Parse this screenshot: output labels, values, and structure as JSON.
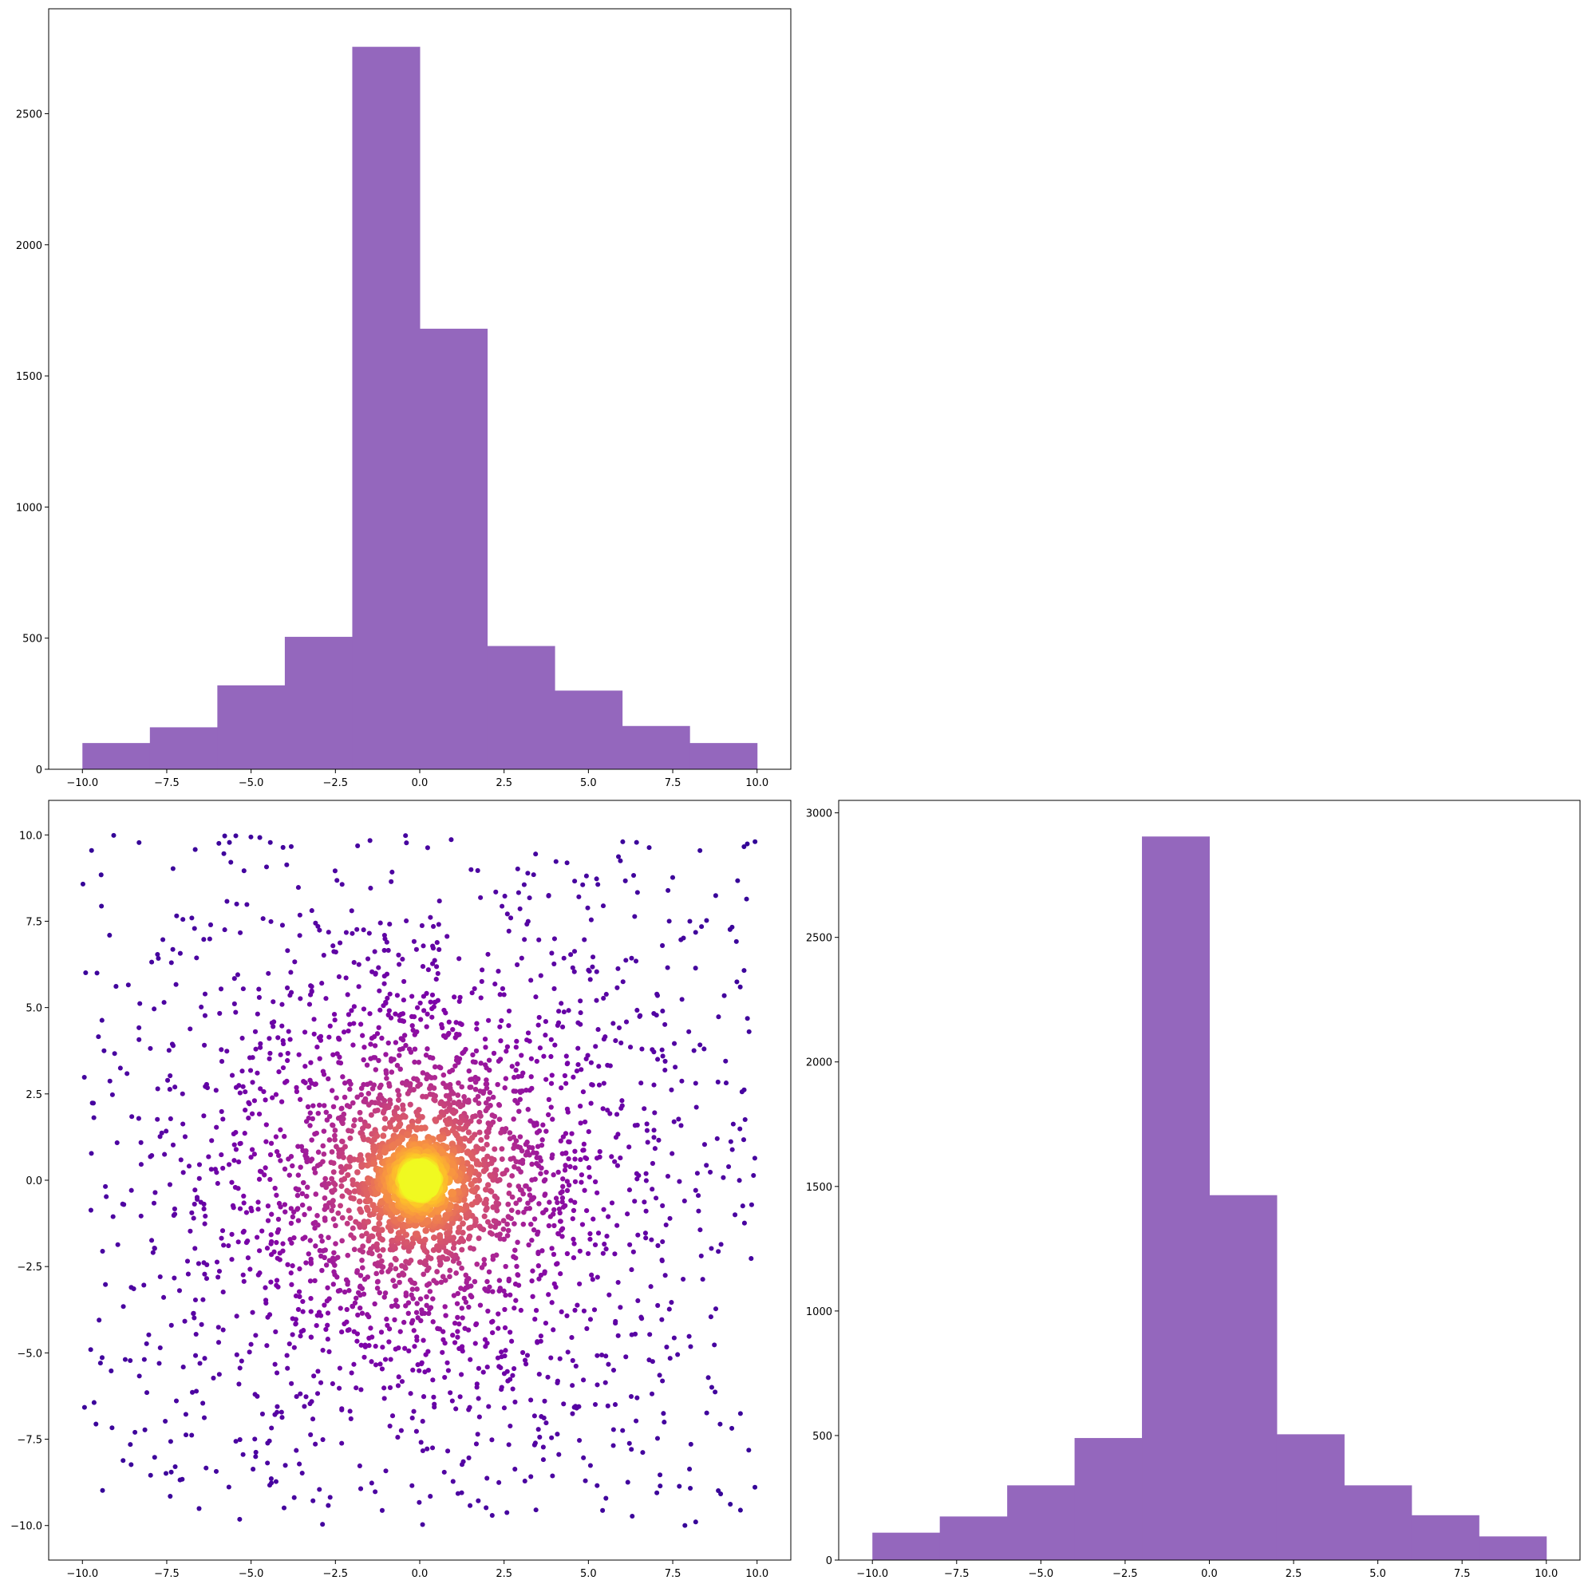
{
  "colors": {
    "hist_fill": "#9467bd",
    "scatter_colormap": "plasma"
  },
  "chart_data": [
    {
      "id": "top-left",
      "type": "bar",
      "variant": "histogram",
      "bin_edges": [
        -10,
        -8,
        -6,
        -4,
        -2,
        0,
        2,
        4,
        6,
        8,
        10
      ],
      "values": [
        100,
        160,
        320,
        505,
        2755,
        1680,
        470,
        300,
        165,
        100
      ],
      "xlim": [
        -11,
        11
      ],
      "ylim": [
        0,
        2900
      ],
      "xticks": [
        -10,
        -7.5,
        -5,
        -2.5,
        0,
        2.5,
        5,
        7.5,
        10
      ],
      "xtick_labels": [
        "−10.0",
        "−7.5",
        "−5.0",
        "−2.5",
        "0.0",
        "2.5",
        "5.0",
        "7.5",
        "10.0"
      ],
      "yticks": [
        0,
        500,
        1000,
        1500,
        2000,
        2500
      ],
      "ytick_labels": [
        "0",
        "500",
        "1000",
        "1500",
        "2000",
        "2500"
      ],
      "grid": false
    },
    {
      "id": "bottom-left",
      "type": "scatter",
      "colormap": "plasma",
      "color_encoding": "inverse distance from origin",
      "size_encoding": "inverse distance from origin",
      "x_range": [
        -10,
        10
      ],
      "y_range": [
        -10,
        10
      ],
      "point_count": 3000,
      "center_cluster": [
        0,
        0
      ],
      "xlim": [
        -11,
        11
      ],
      "ylim": [
        -11,
        11
      ],
      "xticks": [
        -10,
        -7.5,
        -5,
        -2.5,
        0,
        2.5,
        5,
        7.5,
        10
      ],
      "xtick_labels": [
        "−10.0",
        "−7.5",
        "−5.0",
        "−2.5",
        "0.0",
        "2.5",
        "5.0",
        "7.5",
        "10.0"
      ],
      "yticks": [
        -10,
        -7.5,
        -5,
        -2.5,
        0,
        2.5,
        5,
        7.5,
        10
      ],
      "ytick_labels": [
        "−10.0",
        "−7.5",
        "−5.0",
        "−2.5",
        "0.0",
        "2.5",
        "5.0",
        "7.5",
        "10.0"
      ],
      "grid": false
    },
    {
      "id": "bottom-right",
      "type": "bar",
      "variant": "histogram",
      "bin_edges": [
        -10,
        -8,
        -6,
        -4,
        -2,
        0,
        2,
        4,
        6,
        8,
        10
      ],
      "values": [
        110,
        175,
        300,
        490,
        2905,
        1465,
        505,
        300,
        180,
        95
      ],
      "xlim": [
        -11,
        11
      ],
      "ylim": [
        0,
        3050
      ],
      "xticks": [
        -10,
        -7.5,
        -5,
        -2.5,
        0,
        2.5,
        5,
        7.5,
        10
      ],
      "xtick_labels": [
        "−10.0",
        "−7.5",
        "−5.0",
        "−2.5",
        "0.0",
        "2.5",
        "5.0",
        "7.5",
        "10.0"
      ],
      "yticks": [
        0,
        500,
        1000,
        1500,
        2000,
        2500,
        3000
      ],
      "ytick_labels": [
        "0",
        "500",
        "1000",
        "1500",
        "2000",
        "2500",
        "3000"
      ],
      "grid": false
    }
  ]
}
